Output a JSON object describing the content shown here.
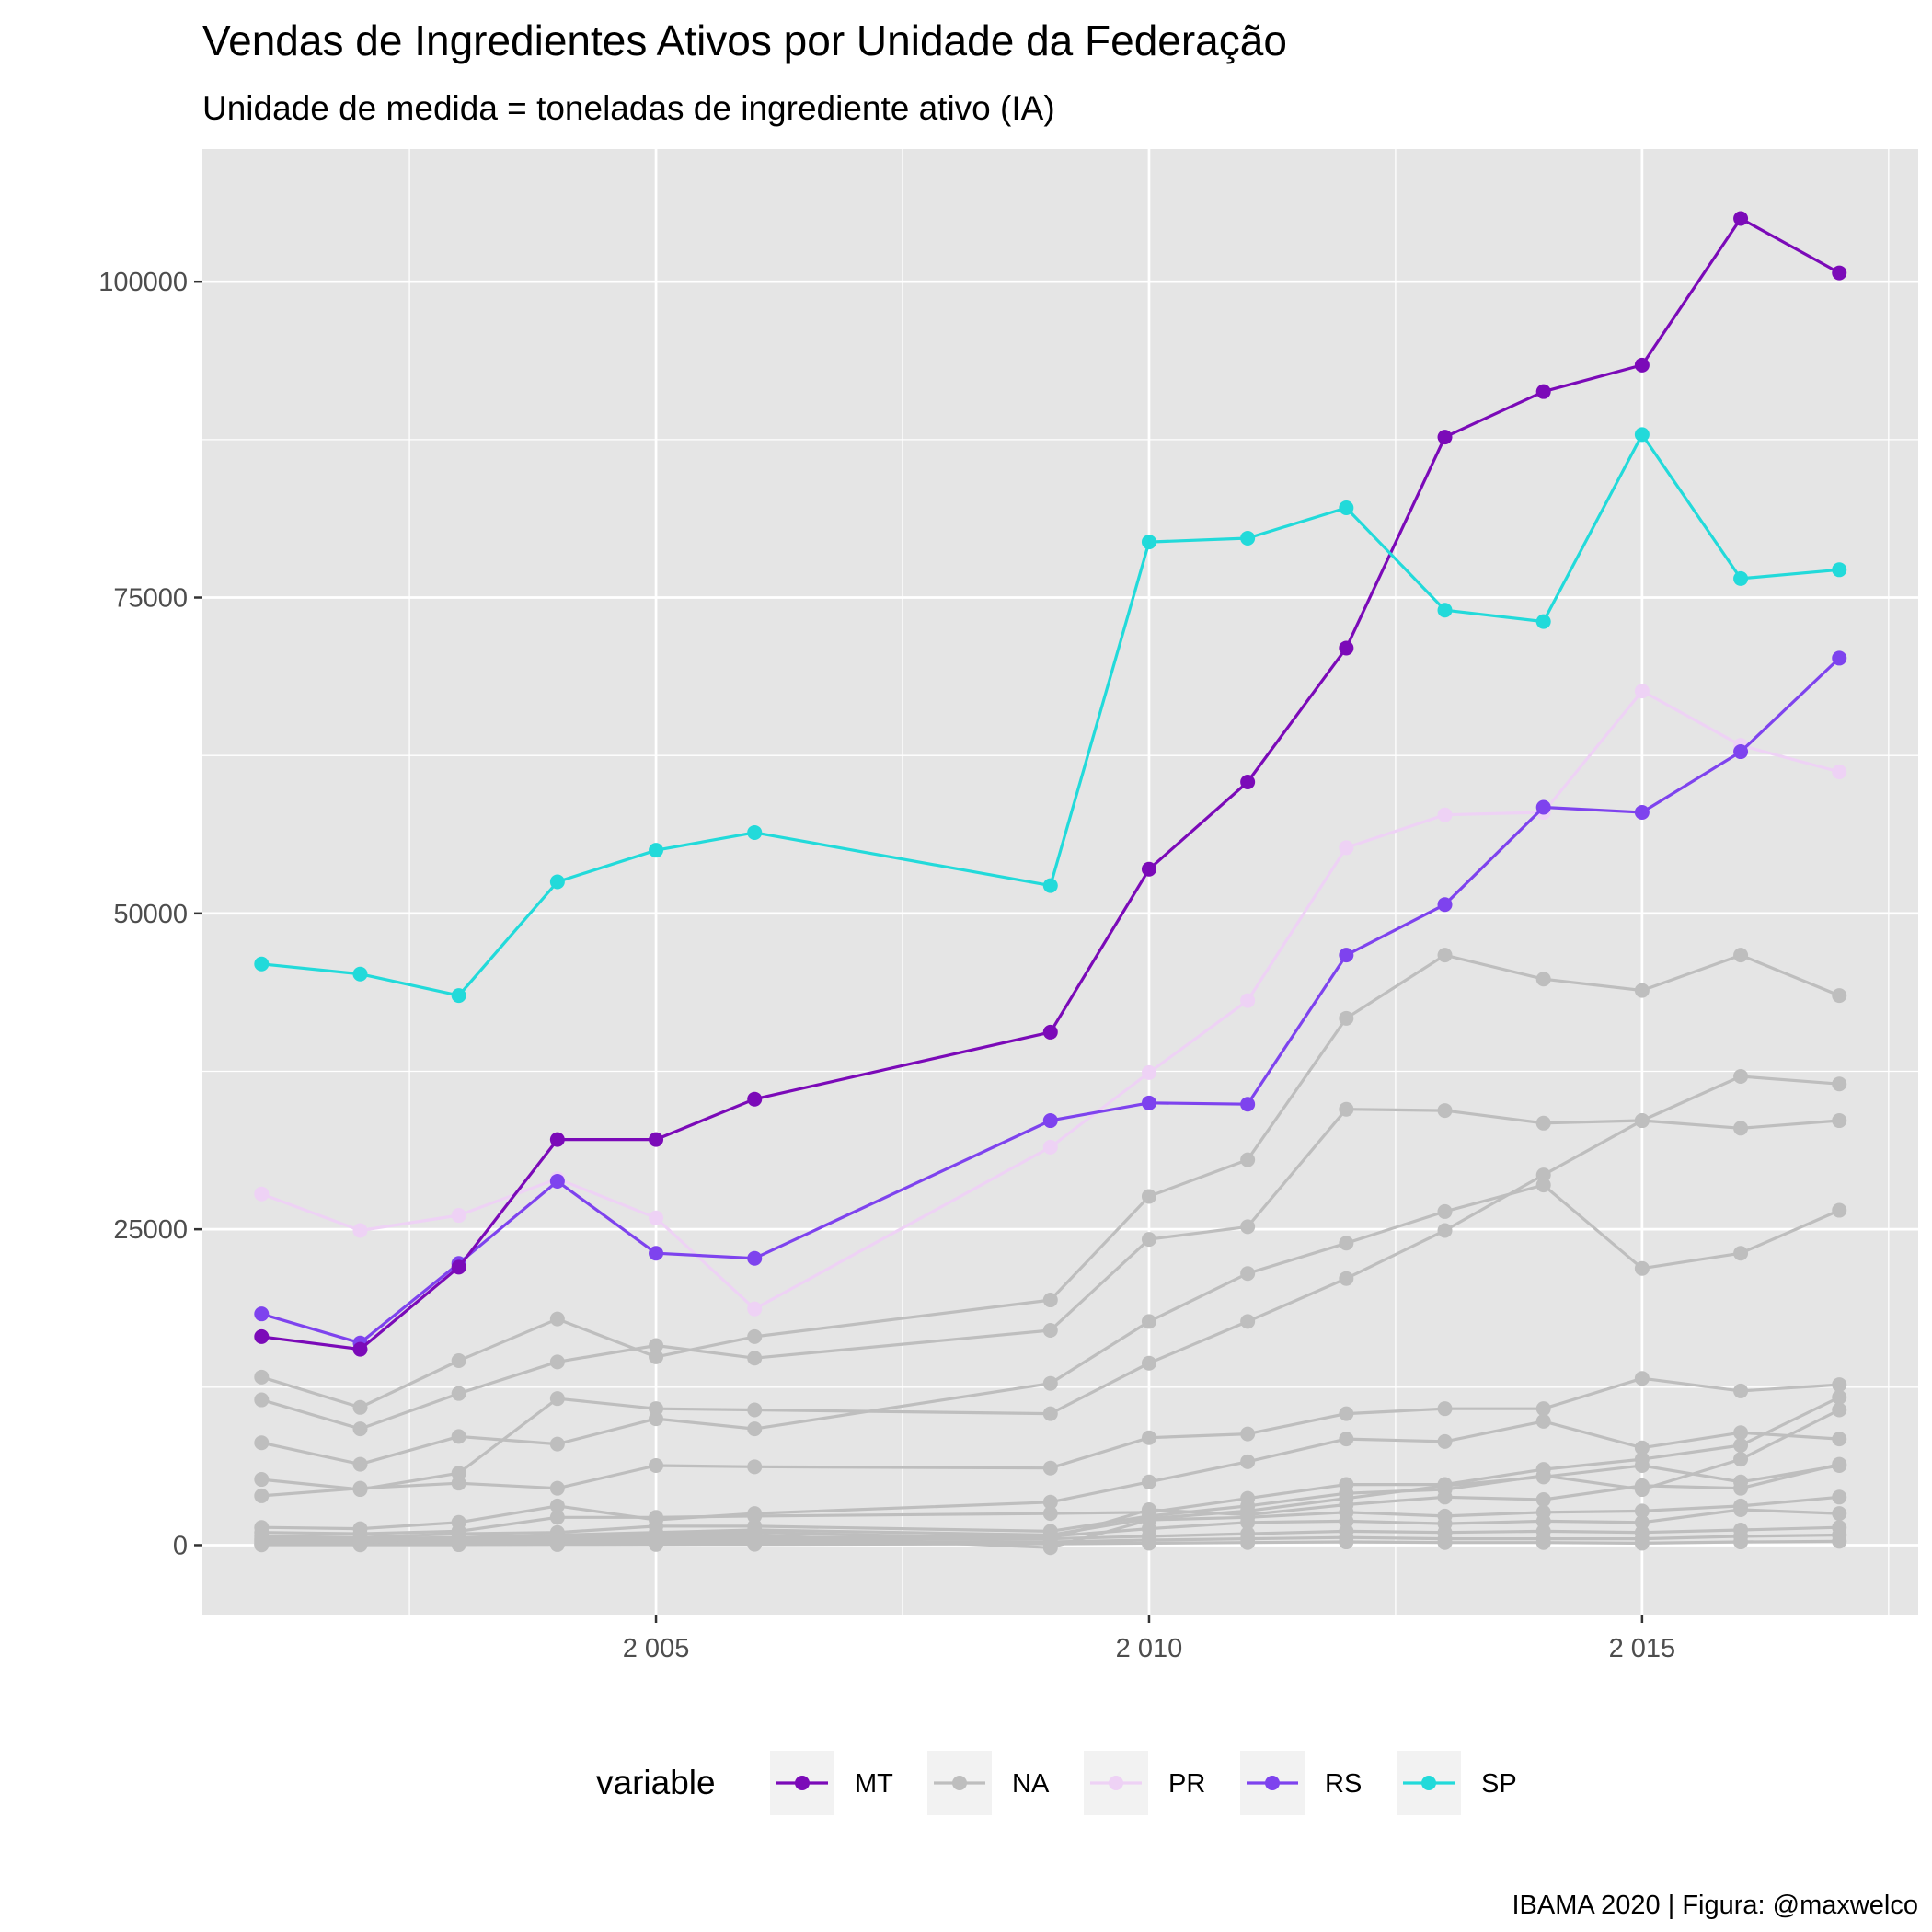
{
  "chart_data": {
    "type": "line",
    "title": "Vendas de Ingredientes Ativos por Unidade da Federação",
    "subtitle": "Unidade de medida = toneladas de ingrediente ativo (IA)",
    "caption": "IBAMA 2020 | Figura: @maxwelco",
    "xlabel": "",
    "ylabel": "",
    "xlim": [
      2000.4,
      2017.8
    ],
    "ylim": [
      -5500,
      110500
    ],
    "x_ticks": [
      2005,
      2010,
      2015
    ],
    "x_tick_labels": [
      "2 005",
      "2 010",
      "2 015"
    ],
    "y_ticks": [
      0,
      25000,
      50000,
      75000,
      100000
    ],
    "y_tick_labels": [
      "0",
      "25000",
      "50000",
      "75000",
      "100000"
    ],
    "grid": true,
    "legend": {
      "title": "variable",
      "position": "bottom",
      "labels": [
        "MT",
        "NA",
        "PR",
        "RS",
        "SP"
      ]
    },
    "colors": {
      "MT": "#7b0ab8",
      "NA": "#bebebe",
      "PR": "#eed2f5",
      "RS": "#7e43ee",
      "SP": "#22dada",
      "panel": "#e5e5e5",
      "grid": "#ffffff"
    },
    "x": [
      2001,
      2002,
      2003,
      2004,
      2005,
      2006,
      2009,
      2010,
      2011,
      2012,
      2013,
      2014,
      2015,
      2016,
      2017
    ],
    "series": [
      {
        "name": "MT",
        "values": [
          16500,
          15500,
          22000,
          32100,
          32100,
          35300,
          40600,
          53500,
          60400,
          71000,
          87700,
          91300,
          93400,
          105000,
          100700
        ]
      },
      {
        "name": "PR",
        "values": [
          27800,
          24900,
          26100,
          29000,
          25900,
          18700,
          31500,
          37400,
          43100,
          55200,
          57800,
          58000,
          67600,
          63300,
          61200
        ]
      },
      {
        "name": "RS",
        "values": [
          18300,
          16000,
          22300,
          28800,
          23100,
          22700,
          33600,
          35000,
          34900,
          46700,
          50700,
          58400,
          58000,
          62800,
          70200
        ]
      },
      {
        "name": "SP",
        "values": [
          46000,
          45200,
          43500,
          52500,
          55000,
          56400,
          52200,
          79400,
          79700,
          82100,
          74000,
          73100,
          87900,
          76500,
          77200
        ]
      },
      {
        "name": "NA",
        "values": [
          13300,
          10900,
          14600,
          17900,
          14900,
          16500,
          19400,
          27600,
          30500,
          41700,
          46700,
          44800,
          43900,
          46700,
          43500
        ]
      },
      {
        "name": "NA",
        "values": [
          11500,
          9200,
          12000,
          14500,
          15800,
          14800,
          17000,
          24200,
          25200,
          34500,
          34400,
          33400,
          33600,
          33000,
          33600
        ]
      },
      {
        "name": "NA",
        "values": [
          8100,
          6400,
          8600,
          8000,
          10000,
          9200,
          12800,
          17700,
          21500,
          23900,
          26400,
          28500,
          21900,
          23100,
          26500
        ]
      },
      {
        "name": "NA",
        "values": [
          5200,
          4400,
          5700,
          11600,
          10800,
          10700,
          10400,
          14400,
          17700,
          21100,
          24900,
          29300,
          33600,
          37100,
          36500
        ]
      },
      {
        "name": "NA",
        "values": [
          3900,
          4500,
          4900,
          4500,
          6300,
          6200,
          6100,
          8500,
          8800,
          10400,
          10800,
          10800,
          13200,
          12200,
          12700
        ]
      },
      {
        "name": "NA",
        "values": [
          1400,
          1300,
          1800,
          3100,
          2000,
          2500,
          3400,
          5000,
          6600,
          8400,
          8200,
          9800,
          7700,
          8900,
          8400
        ]
      },
      {
        "name": "NA",
        "values": [
          1000,
          900,
          1100,
          2200,
          2200,
          2300,
          2500,
          2600,
          3700,
          4800,
          4800,
          6000,
          6800,
          7900,
          11700
        ]
      },
      {
        "name": "NA",
        "values": [
          700,
          600,
          900,
          1000,
          1500,
          1500,
          1100,
          2300,
          3100,
          4100,
          4400,
          5500,
          4400,
          6800,
          10700
        ]
      },
      {
        "name": "NA",
        "values": [
          500,
          500,
          600,
          800,
          1000,
          1200,
          800,
          2100,
          2700,
          3700,
          4700,
          5400,
          6300,
          5000,
          6300
        ]
      },
      {
        "name": "NA",
        "values": [
          400,
          300,
          500,
          700,
          800,
          1000,
          500,
          2800,
          2400,
          3200,
          3800,
          3600,
          4700,
          4500,
          6400
        ]
      },
      {
        "name": "NA",
        "values": [
          300,
          200,
          400,
          600,
          700,
          800,
          -200,
          2000,
          2200,
          2600,
          2300,
          2600,
          2700,
          3100,
          3800
        ]
      },
      {
        "name": "NA",
        "values": [
          200,
          100,
          300,
          400,
          500,
          600,
          700,
          1300,
          1800,
          1900,
          1700,
          1900,
          1800,
          2800,
          2500
        ]
      },
      {
        "name": "NA",
        "values": [
          100,
          100,
          200,
          300,
          300,
          400,
          500,
          700,
          900,
          1100,
          1000,
          1100,
          1000,
          1200,
          1400
        ]
      },
      {
        "name": "NA",
        "values": [
          50,
          50,
          100,
          100,
          150,
          200,
          250,
          400,
          500,
          600,
          500,
          500,
          500,
          700,
          800
        ]
      },
      {
        "name": "NA",
        "values": [
          20,
          20,
          30,
          40,
          50,
          60,
          100,
          150,
          200,
          250,
          200,
          200,
          150,
          250,
          300
        ]
      }
    ]
  }
}
